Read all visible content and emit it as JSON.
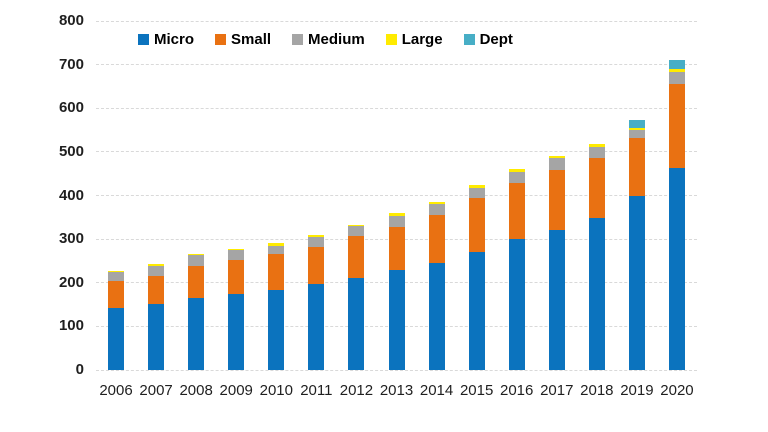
{
  "chart_data": {
    "type": "bar",
    "stacked": true,
    "title": "",
    "xlabel": "",
    "ylabel": "",
    "categories": [
      "2006",
      "2007",
      "2008",
      "2009",
      "2010",
      "2011",
      "2012",
      "2013",
      "2014",
      "2015",
      "2016",
      "2017",
      "2018",
      "2019",
      "2020"
    ],
    "series": [
      {
        "name": "Micro",
        "color": "#0b73be",
        "values": [
          143,
          152,
          166,
          175,
          184,
          198,
          210,
          229,
          245,
          270,
          300,
          322,
          348,
          399,
          463
        ]
      },
      {
        "name": "Small",
        "color": "#e97112",
        "values": [
          60,
          64,
          72,
          77,
          81,
          84,
          97,
          99,
          111,
          125,
          129,
          136,
          137,
          132,
          192
        ]
      },
      {
        "name": "Medium",
        "color": "#a5a5a5",
        "values": [
          21,
          23,
          25,
          22,
          20,
          23,
          23,
          25,
          25,
          23,
          24,
          27,
          26,
          19,
          28
        ]
      },
      {
        "name": "Large",
        "color": "#ffeb00",
        "values": [
          4,
          3,
          3,
          4,
          5,
          4,
          3,
          6,
          4,
          6,
          7,
          6,
          6,
          5,
          7
        ]
      },
      {
        "name": "Dept",
        "color": "#47aec6",
        "values": [
          0,
          0,
          0,
          0,
          0,
          0,
          0,
          0,
          0,
          0,
          0,
          0,
          0,
          19,
          20
        ]
      }
    ],
    "ylim": [
      0,
      800
    ],
    "yticks": [
      0,
      100,
      200,
      300,
      400,
      500,
      600,
      700,
      800
    ],
    "legend_position": "top",
    "grid": true,
    "background_color": "#ffffff",
    "gridline_color": "#d9d9d9",
    "axis_label_color": "#1f1f1f"
  }
}
